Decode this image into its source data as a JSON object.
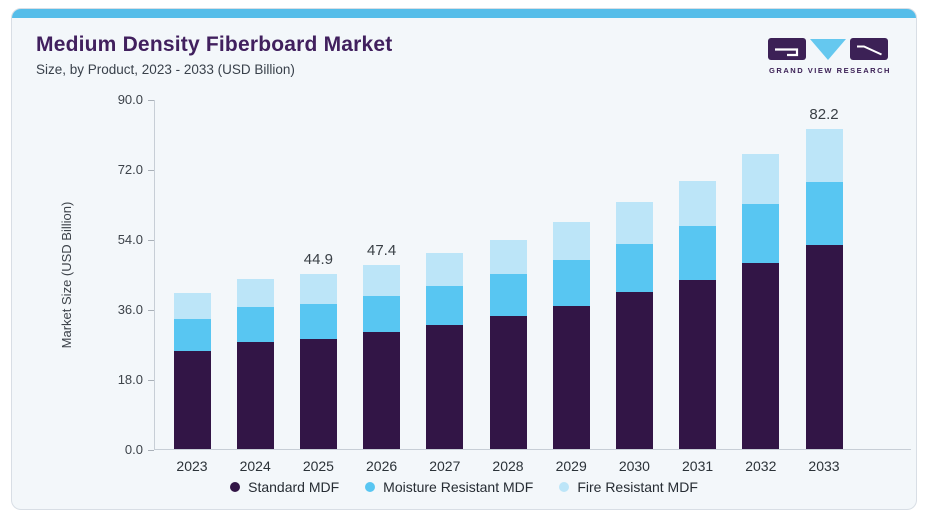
{
  "card": {
    "accent_color": "#55bde9",
    "background": "#f3f7fa",
    "title": "Medium Density Fiberboard Market",
    "subtitle": "Size, by Product, 2023 - 2033 (USD Billion)",
    "title_color": "#41205e"
  },
  "logo": {
    "text": "GRAND VIEW RESEARCH",
    "purple": "#3c2156",
    "blue": "#65c8ef"
  },
  "chart_data": {
    "type": "bar",
    "stacked": true,
    "title": "Medium Density Fiberboard Market Size, by Product, 2023 - 2033 (USD Billion)",
    "ylabel": "Market Size (USD Billion)",
    "ylim": [
      0,
      90
    ],
    "yticks": [
      0,
      18,
      36,
      54,
      72,
      90
    ],
    "ytick_labels": [
      "0.0",
      "18.0",
      "36.0",
      "54.0",
      "72.0",
      "90.0"
    ],
    "grid": false,
    "legend_position": "bottom",
    "categories": [
      "2023",
      "2024",
      "2025",
      "2026",
      "2027",
      "2028",
      "2029",
      "2030",
      "2031",
      "2032",
      "2033"
    ],
    "series": [
      {
        "name": "Standard MDF",
        "color": "#321546",
        "values": [
          25.2,
          27.6,
          28.3,
          30.0,
          31.8,
          34.1,
          36.8,
          40.3,
          43.5,
          47.8,
          52.4
        ]
      },
      {
        "name": "Moisture Resistant MDF",
        "color": "#58c6f2",
        "values": [
          8.3,
          8.8,
          9.0,
          9.4,
          10.1,
          11.0,
          11.7,
          12.5,
          13.9,
          15.3,
          16.2
        ]
      },
      {
        "name": "Fire Resistant MDF",
        "color": "#bce5f8",
        "values": [
          6.7,
          7.3,
          7.6,
          8.0,
          8.4,
          8.6,
          9.8,
          10.7,
          11.5,
          12.7,
          13.6
        ]
      }
    ],
    "totals": [
      40.2,
      43.7,
      44.9,
      47.4,
      50.3,
      53.7,
      58.3,
      63.5,
      68.9,
      75.8,
      82.2
    ],
    "annotations": [
      {
        "category_index": 2,
        "text": "44.9"
      },
      {
        "category_index": 3,
        "text": "47.4"
      },
      {
        "category_index": 10,
        "text": "82.2"
      }
    ]
  }
}
